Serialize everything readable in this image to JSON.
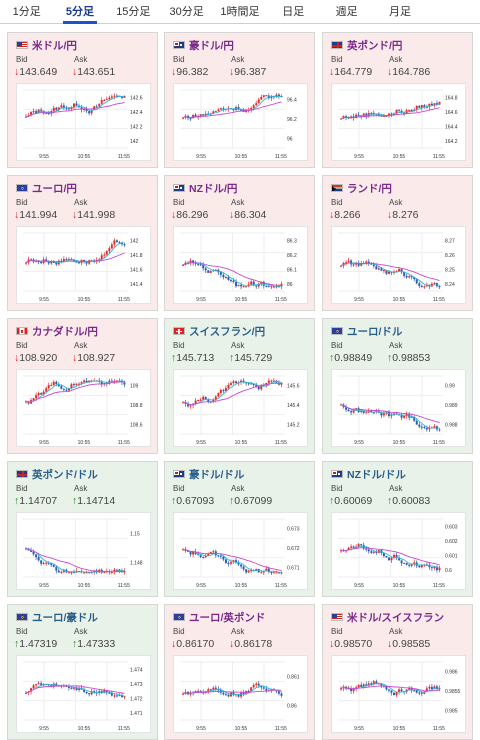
{
  "tabs": [
    {
      "label": "1分足",
      "active": false
    },
    {
      "label": "5分足",
      "active": true
    },
    {
      "label": "15分足",
      "active": false
    },
    {
      "label": "30分足",
      "active": false
    },
    {
      "label": "1時間足",
      "active": false
    },
    {
      "label": "日足",
      "active": false
    },
    {
      "label": "週足",
      "active": false
    },
    {
      "label": "月足",
      "active": false
    }
  ],
  "labels": {
    "bid": "Bid",
    "ask": "Ask"
  },
  "colors": {
    "up_candle": "#e0302c",
    "down_candle": "#2a5fb5",
    "ma_short": "#35b6d6",
    "ma_long": "#c94ad0",
    "card_down_bg": "#fbeaea",
    "card_up_bg": "#e9f2e9"
  },
  "cards": [
    {
      "name": "米ドル/円",
      "flag": "us-flag-icon",
      "dir": "down",
      "bid": "143.649",
      "ask": "143.651",
      "xticks": [
        "9:55",
        "10:55",
        "11:55"
      ],
      "yticks": [
        "142.6",
        "142.4",
        "142.2",
        "142"
      ],
      "ma_trend": "up"
    },
    {
      "name": "豪ドル/円",
      "flag": "au-flag-icon",
      "dir": "down",
      "bid": "96.382",
      "ask": "96.387",
      "xticks": [
        "9:55",
        "10:55",
        "11:55"
      ],
      "yticks": [
        "96.4",
        "96.2",
        "96"
      ],
      "ma_trend": "up"
    },
    {
      "name": "英ポンド/円",
      "flag": "gb-flag-icon",
      "dir": "down",
      "bid": "164.779",
      "ask": "164.786",
      "xticks": [
        "9:55",
        "10:55",
        "11:55"
      ],
      "yticks": [
        "164.8",
        "164.6",
        "164.4",
        "164.2"
      ],
      "ma_trend": "up"
    },
    {
      "name": "ユーロ/円",
      "flag": "eu-flag-icon",
      "dir": "down",
      "bid": "141.994",
      "ask": "141.998",
      "xticks": [
        "9:55",
        "10:55",
        "11:55"
      ],
      "yticks": [
        "142",
        "141.8",
        "141.6",
        "141.4"
      ],
      "ma_trend": "up"
    },
    {
      "name": "NZドル/円",
      "flag": "nz-flag-icon",
      "dir": "down",
      "bid": "86.296",
      "ask": "86.304",
      "xticks": [
        "9:55",
        "10:55",
        "11:55"
      ],
      "yticks": [
        "86.3",
        "86.2",
        "86.1",
        "86"
      ],
      "ma_trend": "down"
    },
    {
      "name": "ランド/円",
      "flag": "za-flag-icon",
      "dir": "down",
      "bid": "8.266",
      "ask": "8.276",
      "xticks": [
        "9:55",
        "10:55",
        "11:55"
      ],
      "yticks": [
        "8.27",
        "8.26",
        "8.25",
        "8.24"
      ],
      "ma_trend": "down"
    },
    {
      "name": "カナダドル/円",
      "flag": "ca-flag-icon",
      "dir": "down",
      "bid": "108.920",
      "ask": "108.927",
      "xticks": [
        "9:55",
        "10:55",
        "11:55"
      ],
      "yticks": [
        "109",
        "108.8",
        "108.6"
      ],
      "ma_trend": "up"
    },
    {
      "name": "スイスフラン/円",
      "flag": "ch-flag-icon",
      "dir": "up",
      "bid": "145.713",
      "ask": "145.729",
      "xticks": [
        "9:55",
        "10:55",
        "11:55"
      ],
      "yticks": [
        "145.6",
        "145.4",
        "145.2"
      ],
      "ma_trend": "up"
    },
    {
      "name": "ユーロ/ドル",
      "flag": "eu-flag-icon",
      "dir": "up",
      "bid": "0.98849",
      "ask": "0.98853",
      "xticks": [
        "9:55",
        "10:55",
        "11:55"
      ],
      "yticks": [
        "0.99",
        "0.989",
        "0.988"
      ],
      "ma_trend": "down"
    },
    {
      "name": "英ポンド/ドル",
      "flag": "gb-flag-icon",
      "dir": "up",
      "bid": "1.14707",
      "ask": "1.14714",
      "xticks": [
        "9:55",
        "10:55",
        "11:55"
      ],
      "yticks": [
        "1.15",
        "1.148"
      ],
      "ma_trend": "down"
    },
    {
      "name": "豪ドル/ドル",
      "flag": "au-flag-icon",
      "dir": "up",
      "bid": "0.67093",
      "ask": "0.67099",
      "xticks": [
        "9:55",
        "10:55",
        "11:55"
      ],
      "yticks": [
        "0.673",
        "0.672",
        "0.671"
      ],
      "ma_trend": "down"
    },
    {
      "name": "NZドル/ドル",
      "flag": "nz-flag-icon",
      "dir": "up",
      "bid": "0.60069",
      "ask": "0.60083",
      "xticks": [
        "9:55",
        "10:55",
        "11:55"
      ],
      "yticks": [
        "0.603",
        "0.602",
        "0.601",
        "0.6"
      ],
      "ma_trend": "down"
    },
    {
      "name": "ユーロ/豪ドル",
      "flag": "eu-flag-icon",
      "dir": "up",
      "bid": "1.47319",
      "ask": "1.47333",
      "xticks": [
        "9:55",
        "10:55",
        "11:55"
      ],
      "yticks": [
        "1.474",
        "1.473",
        "1.472",
        "1.471"
      ],
      "ma_trend": "up"
    },
    {
      "name": "ユーロ/英ポンド",
      "flag": "eu-flag-icon",
      "dir": "down",
      "bid": "0.86170",
      "ask": "0.86178",
      "xticks": [
        "9:55",
        "10:55",
        "11:55"
      ],
      "yticks": [
        "0.861",
        "0.86"
      ],
      "ma_trend": "up"
    },
    {
      "name": "米ドル/スイスフラン",
      "flag": "us-flag-icon",
      "dir": "down",
      "bid": "0.98570",
      "ask": "0.98585",
      "xticks": [
        "9:55",
        "10:55",
        "11:55"
      ],
      "yticks": [
        "0.986",
        "0.9855",
        "0.985"
      ],
      "ma_trend": "flat"
    }
  ]
}
